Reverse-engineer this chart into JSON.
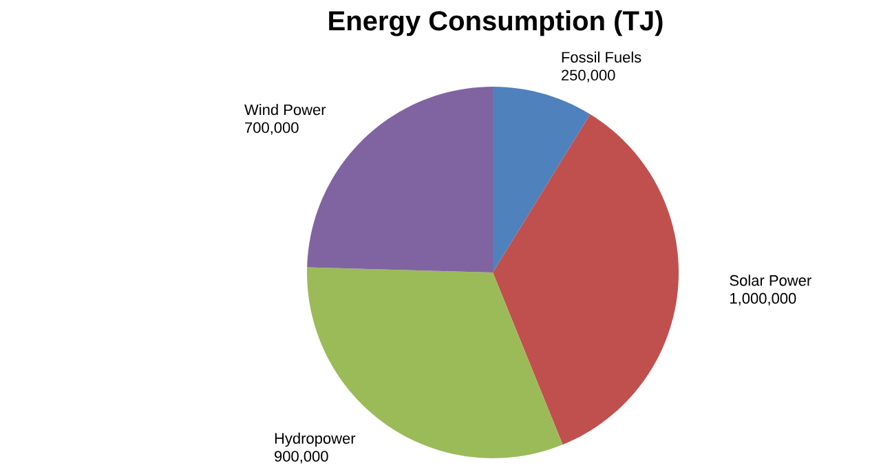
{
  "chart_data": {
    "type": "pie",
    "title": "Energy Consumption (TJ)",
    "categories": [
      "Fossil Fuels",
      "Solar Power",
      "Hydropower",
      "Wind Power"
    ],
    "values": [
      250000,
      1000000,
      900000,
      700000
    ],
    "colors": [
      "#4f81bd",
      "#c0504d",
      "#9bbb59",
      "#8064a2"
    ],
    "value_labels": [
      "250,000",
      "1,000,000",
      "900,000",
      "700,000"
    ]
  }
}
